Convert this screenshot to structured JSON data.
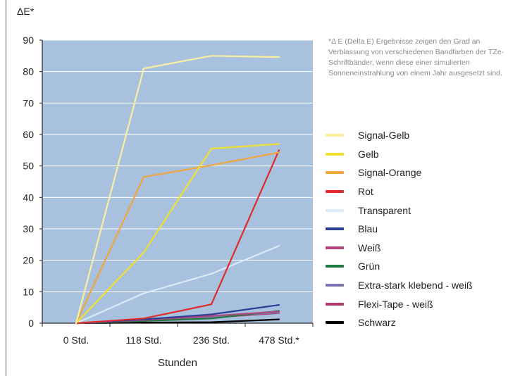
{
  "chart_data": {
    "type": "line",
    "ylabel": "ΔE*",
    "xlabel": "Stunden",
    "categories": [
      "0 Std.",
      "118 Std.",
      "236 Std.",
      "478 Std.*"
    ],
    "ylim": [
      0,
      90
    ],
    "yticks": [
      0,
      10,
      20,
      30,
      40,
      50,
      60,
      70,
      80,
      90
    ],
    "grid": true,
    "plot_background": "#a8c1de",
    "legend_position": "right",
    "footnote": "*Δ E (Delta E) Ergebnisse zeigen den Grad an Verblassung von verschiedenen Bandfarben der TZe-Schriftbänder, wenn diese einer simulierten Sonneneinstrahlung von einem Jahr ausgesetzt sind.",
    "series": [
      {
        "name": "Signal-Gelb",
        "color": "#f8f0a0",
        "values": [
          0,
          81,
          85,
          84.6
        ]
      },
      {
        "name": "Gelb",
        "color": "#f2e030",
        "values": [
          0,
          22.5,
          55.5,
          57
        ]
      },
      {
        "name": "Signal-Orange",
        "color": "#f4a43c",
        "values": [
          0,
          46.5,
          50.2,
          54.3
        ]
      },
      {
        "name": "Rot",
        "color": "#e02a2a",
        "values": [
          0,
          1.5,
          6,
          55
        ]
      },
      {
        "name": "Transparent",
        "color": "#dce9f6",
        "values": [
          0,
          9.5,
          15.7,
          24.6
        ]
      },
      {
        "name": "Blau",
        "color": "#2c3f96",
        "values": [
          0,
          1.2,
          2.8,
          5.8
        ]
      },
      {
        "name": "Weiß",
        "color": "#b0487e",
        "values": [
          0,
          1.0,
          2.3,
          3.7
        ]
      },
      {
        "name": "Grün",
        "color": "#1f7a3e",
        "values": [
          0,
          0.7,
          1.5,
          3.9
        ]
      },
      {
        "name": "Extra-stark klebend - weiß",
        "color": "#7c76b4",
        "values": [
          0,
          0.8,
          2.0,
          3.4
        ]
      },
      {
        "name": "Flexi-Tape - weiß",
        "color": "#b03a6e",
        "values": [
          0,
          0.9,
          1.8,
          3.2
        ]
      },
      {
        "name": "Schwarz",
        "color": "#000000",
        "values": [
          0,
          0.2,
          0.3,
          1.2
        ]
      }
    ]
  }
}
